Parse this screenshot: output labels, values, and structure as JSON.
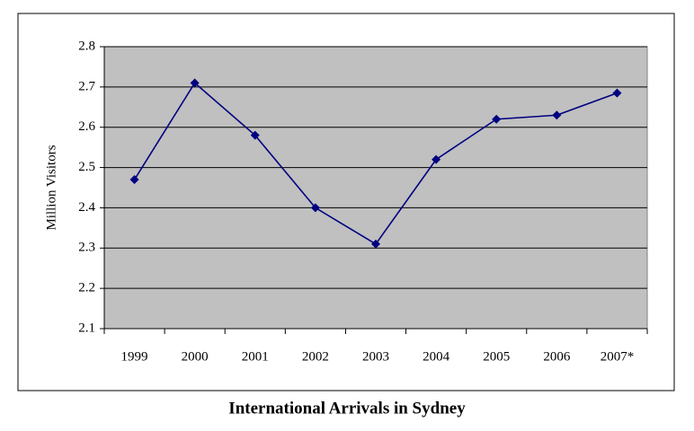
{
  "chart_data": {
    "type": "line",
    "title": "International Arrivals in Sydney",
    "y_label": "Million Visitors",
    "categories": [
      "1999",
      "2000",
      "2001",
      "2002",
      "2003",
      "2004",
      "2005",
      "2006",
      "2007*"
    ],
    "series": [
      {
        "name": "International Arrivals",
        "color": "#000080",
        "values": [
          2.47,
          2.71,
          2.58,
          2.4,
          2.31,
          2.52,
          2.62,
          2.63,
          2.685
        ]
      }
    ],
    "ylim": [
      2.1,
      2.8
    ],
    "yticks": [
      2.1,
      2.2,
      2.3,
      2.4,
      2.5,
      2.6,
      2.7,
      2.8
    ],
    "grid": true,
    "plot_background": "#c0c0c0"
  }
}
